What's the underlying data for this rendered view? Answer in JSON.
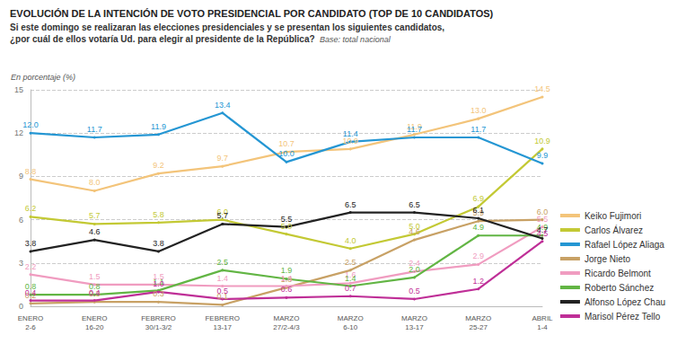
{
  "chart_data": {
    "type": "line",
    "title": "EVOLUCIÓN DE LA INTENCIÓN DE VOTO PRESIDENCIAL POR CANDIDATO (TOP DE 10 CANDIDATOS)",
    "subtitle": "Si este domingo se realizaran las elecciones presidenciales y se presentan los siguientes candidatos,\n¿por cuál de ellos votaría Ud. para elegir al presidente de la República?",
    "base_note": "Base: total nacional",
    "y_label": "En porcentaje (%)",
    "categories": [
      "ENERO\n2-6",
      "ENERO\n16-20",
      "FEBRERO\n30/1-3/2",
      "FEBRERO\n13-17",
      "MARZO\n27/2-4/3",
      "MARZO\n6-10",
      "MARZO\n13-17",
      "MARZO\n25-27",
      "ABRIL\n1-4"
    ],
    "series": [
      {
        "name": "Keiko Fujimori",
        "color": "#f3c47a",
        "values": [
          8.8,
          8.0,
          9.2,
          9.7,
          10.7,
          10.9,
          11.9,
          13.0,
          14.5
        ],
        "value_labels": [
          "8.8",
          "8.0",
          "9.2",
          "9.7",
          "10.7",
          "10.9",
          "11.9",
          "13.0",
          "14.5"
        ]
      },
      {
        "name": "Carlos Álvarez",
        "color": "#c3c934",
        "values": [
          6.2,
          5.7,
          5.8,
          6.0,
          5.0,
          4.0,
          5.0,
          6.9,
          10.9
        ],
        "value_labels": [
          "6.2",
          "5.7",
          "5.8",
          "6.0",
          "5.0",
          "4.0",
          "5.0",
          "6.9",
          "10.9"
        ]
      },
      {
        "name": "Rafael López Aliaga",
        "color": "#2496d3",
        "values": [
          12.0,
          11.7,
          11.9,
          13.4,
          10.0,
          11.4,
          11.7,
          11.7,
          9.9
        ],
        "value_labels": [
          "12.0",
          "11.7",
          "11.9",
          "13.4",
          "10.0",
          "11.4",
          "11.7",
          "11.7",
          "9.9"
        ]
      },
      {
        "name": "Jorge Nieto",
        "color": "#c8a165",
        "values": [
          0.2,
          0.3,
          0.3,
          0.1,
          1.3,
          2.5,
          4.6,
          5.9,
          6.0
        ],
        "value_labels": [
          "0.2",
          "0.3",
          "0.3",
          "0.1",
          "1.3",
          "2.5",
          "4.6",
          "5.9",
          "6.0"
        ]
      },
      {
        "name": "Ricardo Belmont",
        "color": "#f09cc0",
        "values": [
          2.2,
          1.5,
          1.5,
          1.4,
          1.4,
          1.6,
          2.4,
          2.9,
          5.5
        ],
        "value_labels": [
          "2.2",
          "1.5",
          "1.5",
          "1.4",
          "1.4",
          "1.6",
          "2.4",
          "2.9",
          "5.5"
        ]
      },
      {
        "name": "Roberto Sánchez",
        "color": "#62b544",
        "values": [
          0.8,
          0.8,
          1.1,
          2.5,
          1.9,
          1.4,
          2.0,
          4.9,
          4.9
        ],
        "value_labels": [
          "0.8",
          "0.8",
          "1.1",
          "2.5",
          "1.9",
          "1.4",
          "2.0",
          "4.9",
          "4.9"
        ]
      },
      {
        "name": "Alfonso López Chau",
        "color": "#222222",
        "values": [
          3.8,
          4.6,
          3.8,
          5.7,
          5.5,
          6.5,
          6.5,
          6.1,
          4.7
        ],
        "value_labels": [
          "3.8",
          "4.6",
          "3.8",
          "5.7",
          "5.5",
          "6.5",
          "6.5",
          "6.1",
          "4.7"
        ]
      },
      {
        "name": "Marisol Pérez Tello",
        "color": "#bf2f97",
        "values": [
          0.4,
          0.4,
          1.0,
          0.5,
          0.6,
          0.7,
          0.5,
          1.2,
          4.5
        ],
        "value_labels": [
          "0.4",
          "0.4",
          "1.0",
          "0.5",
          "0.6",
          "0.7",
          "0.5",
          "1.2",
          "4.5"
        ]
      }
    ],
    "ylim": [
      0,
      15
    ],
    "yticks": [
      0,
      3,
      6,
      9,
      12,
      15
    ],
    "grid": true,
    "legend": "right",
    "data_labels": true
  }
}
